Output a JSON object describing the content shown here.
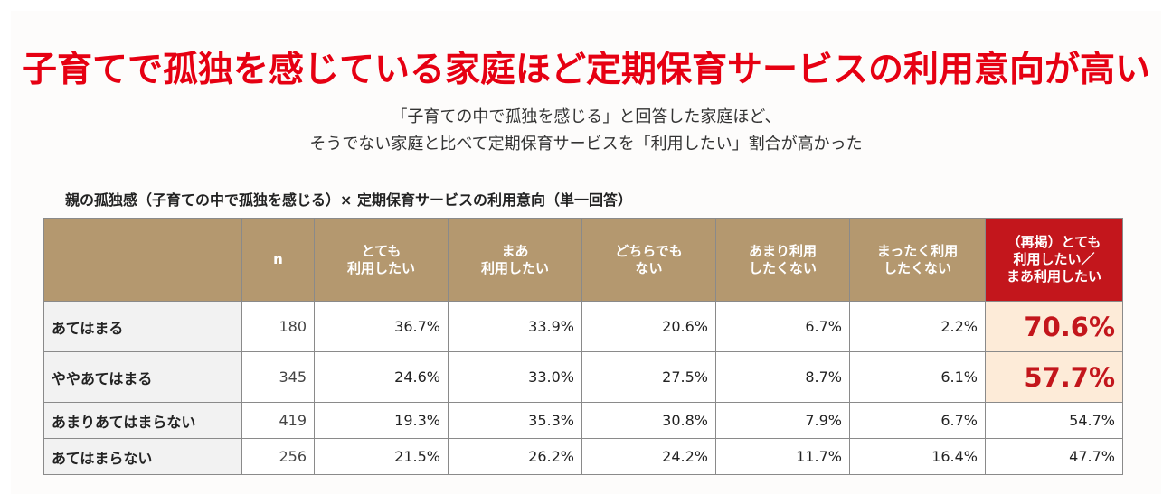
{
  "headline": "子育てで孤独を感じている家庭ほど定期保育サービスの利用意向が高い",
  "subtitle_lines": [
    "「子育ての中で孤独を感じる」と回答した家庭ほど、",
    "そうでない家庭と比べて定期保育サービスを「利用したい」割合が高かった"
  ],
  "table_caption": "親の孤独感（子育ての中で孤独を感じる）× 定期保育サービスの利用意向（単一回答）",
  "table": {
    "columns": [
      {
        "lines": [
          "n"
        ]
      },
      {
        "lines": [
          "とても",
          "利用したい"
        ]
      },
      {
        "lines": [
          "まあ",
          "利用したい"
        ]
      },
      {
        "lines": [
          "どちらでも",
          "ない"
        ]
      },
      {
        "lines": [
          "あまり利用",
          "したくない"
        ]
      },
      {
        "lines": [
          "まったく利用",
          "したくない"
        ]
      },
      {
        "lines": [
          "（再掲）とても",
          "利用したい／",
          "まあ利用したい"
        ]
      }
    ],
    "rows": [
      {
        "label": "あてはまる",
        "n": "180",
        "values": [
          "36.7%",
          "33.9%",
          "20.6%",
          "6.7%",
          "2.2%"
        ],
        "total": "70.6%"
      },
      {
        "label": "ややあてはまる",
        "n": "345",
        "values": [
          "24.6%",
          "33.0%",
          "27.5%",
          "8.7%",
          "6.1%"
        ],
        "total": "57.7%"
      },
      {
        "label": "あまりあてはまらない",
        "n": "419",
        "values": [
          "19.3%",
          "35.3%",
          "30.8%",
          "7.9%",
          "6.7%"
        ],
        "total": "54.7%"
      },
      {
        "label": "あてはまらない",
        "n": "256",
        "values": [
          "21.5%",
          "26.2%",
          "24.2%",
          "11.7%",
          "16.4%"
        ],
        "total": "47.7%"
      }
    ]
  },
  "colors": {
    "headline": "#e60012",
    "header_bg": "#b4986f",
    "highlight_header_bg": "#c3161c",
    "highlight_cell_bg": "#fdebd8"
  }
}
